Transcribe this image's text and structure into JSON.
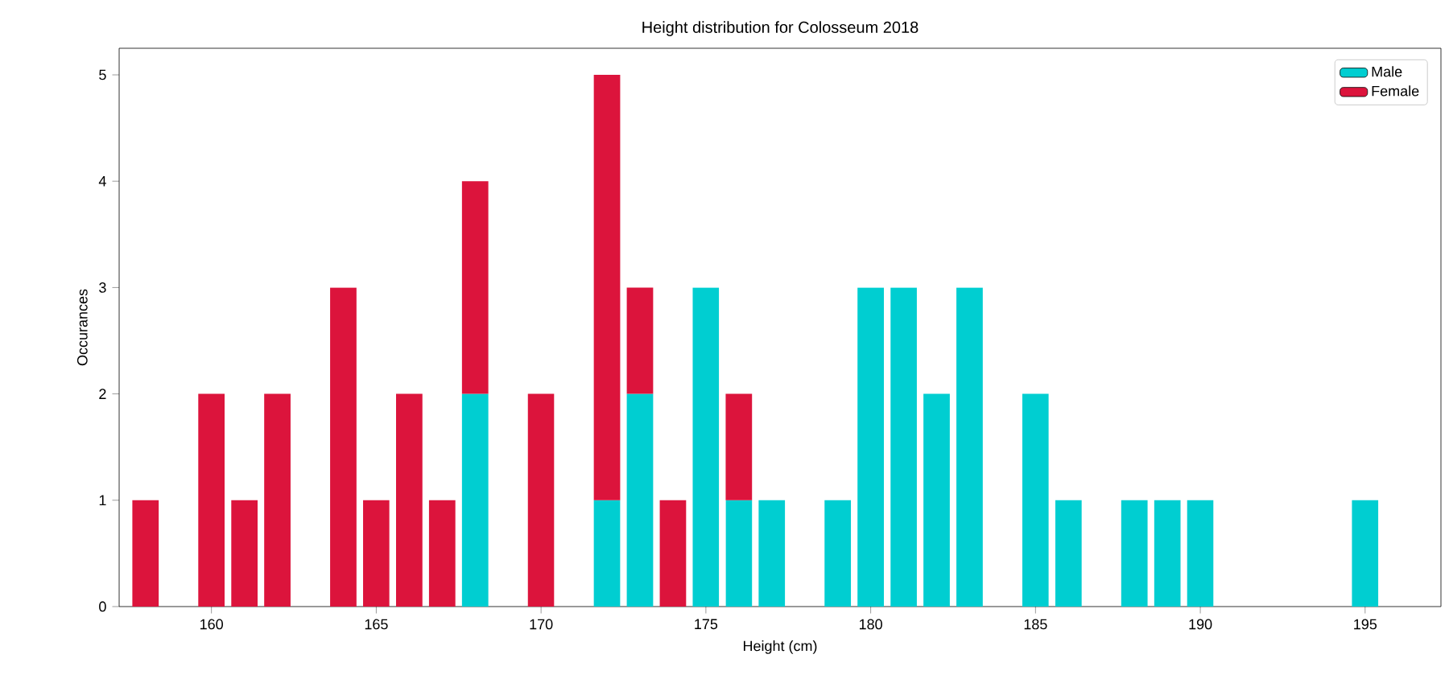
{
  "chart_data": {
    "type": "bar",
    "stacked": true,
    "title": "Height distribution for Colosseum 2018",
    "xlabel": "Height (cm)",
    "ylabel": "Occurances",
    "x": [
      158,
      160,
      161,
      162,
      164,
      165,
      166,
      167,
      168,
      170,
      172,
      173,
      174,
      175,
      176,
      177,
      179,
      180,
      181,
      182,
      183,
      185,
      186,
      188,
      189,
      190,
      195
    ],
    "series": [
      {
        "name": "Male",
        "color": "#00ced1",
        "values": [
          null,
          null,
          null,
          null,
          null,
          null,
          null,
          null,
          2,
          null,
          1,
          2,
          null,
          3,
          1,
          1,
          1,
          3,
          3,
          2,
          3,
          2,
          1,
          1,
          1,
          1,
          1
        ]
      },
      {
        "name": "Female",
        "color": "#dc143c",
        "values": [
          1,
          2,
          1,
          2,
          3,
          1,
          2,
          1,
          2,
          2,
          4,
          1,
          1,
          null,
          1,
          null,
          null,
          null,
          null,
          null,
          null,
          null,
          null,
          null,
          null,
          null,
          null
        ]
      }
    ],
    "xlim": [
      157.2,
      197.3
    ],
    "ylim": [
      0,
      5.25
    ],
    "xticks": [
      160,
      165,
      170,
      175,
      180,
      185,
      190,
      195
    ],
    "yticks": [
      0,
      1,
      2,
      3,
      4,
      5
    ],
    "grid": false,
    "legend": "top right"
  }
}
